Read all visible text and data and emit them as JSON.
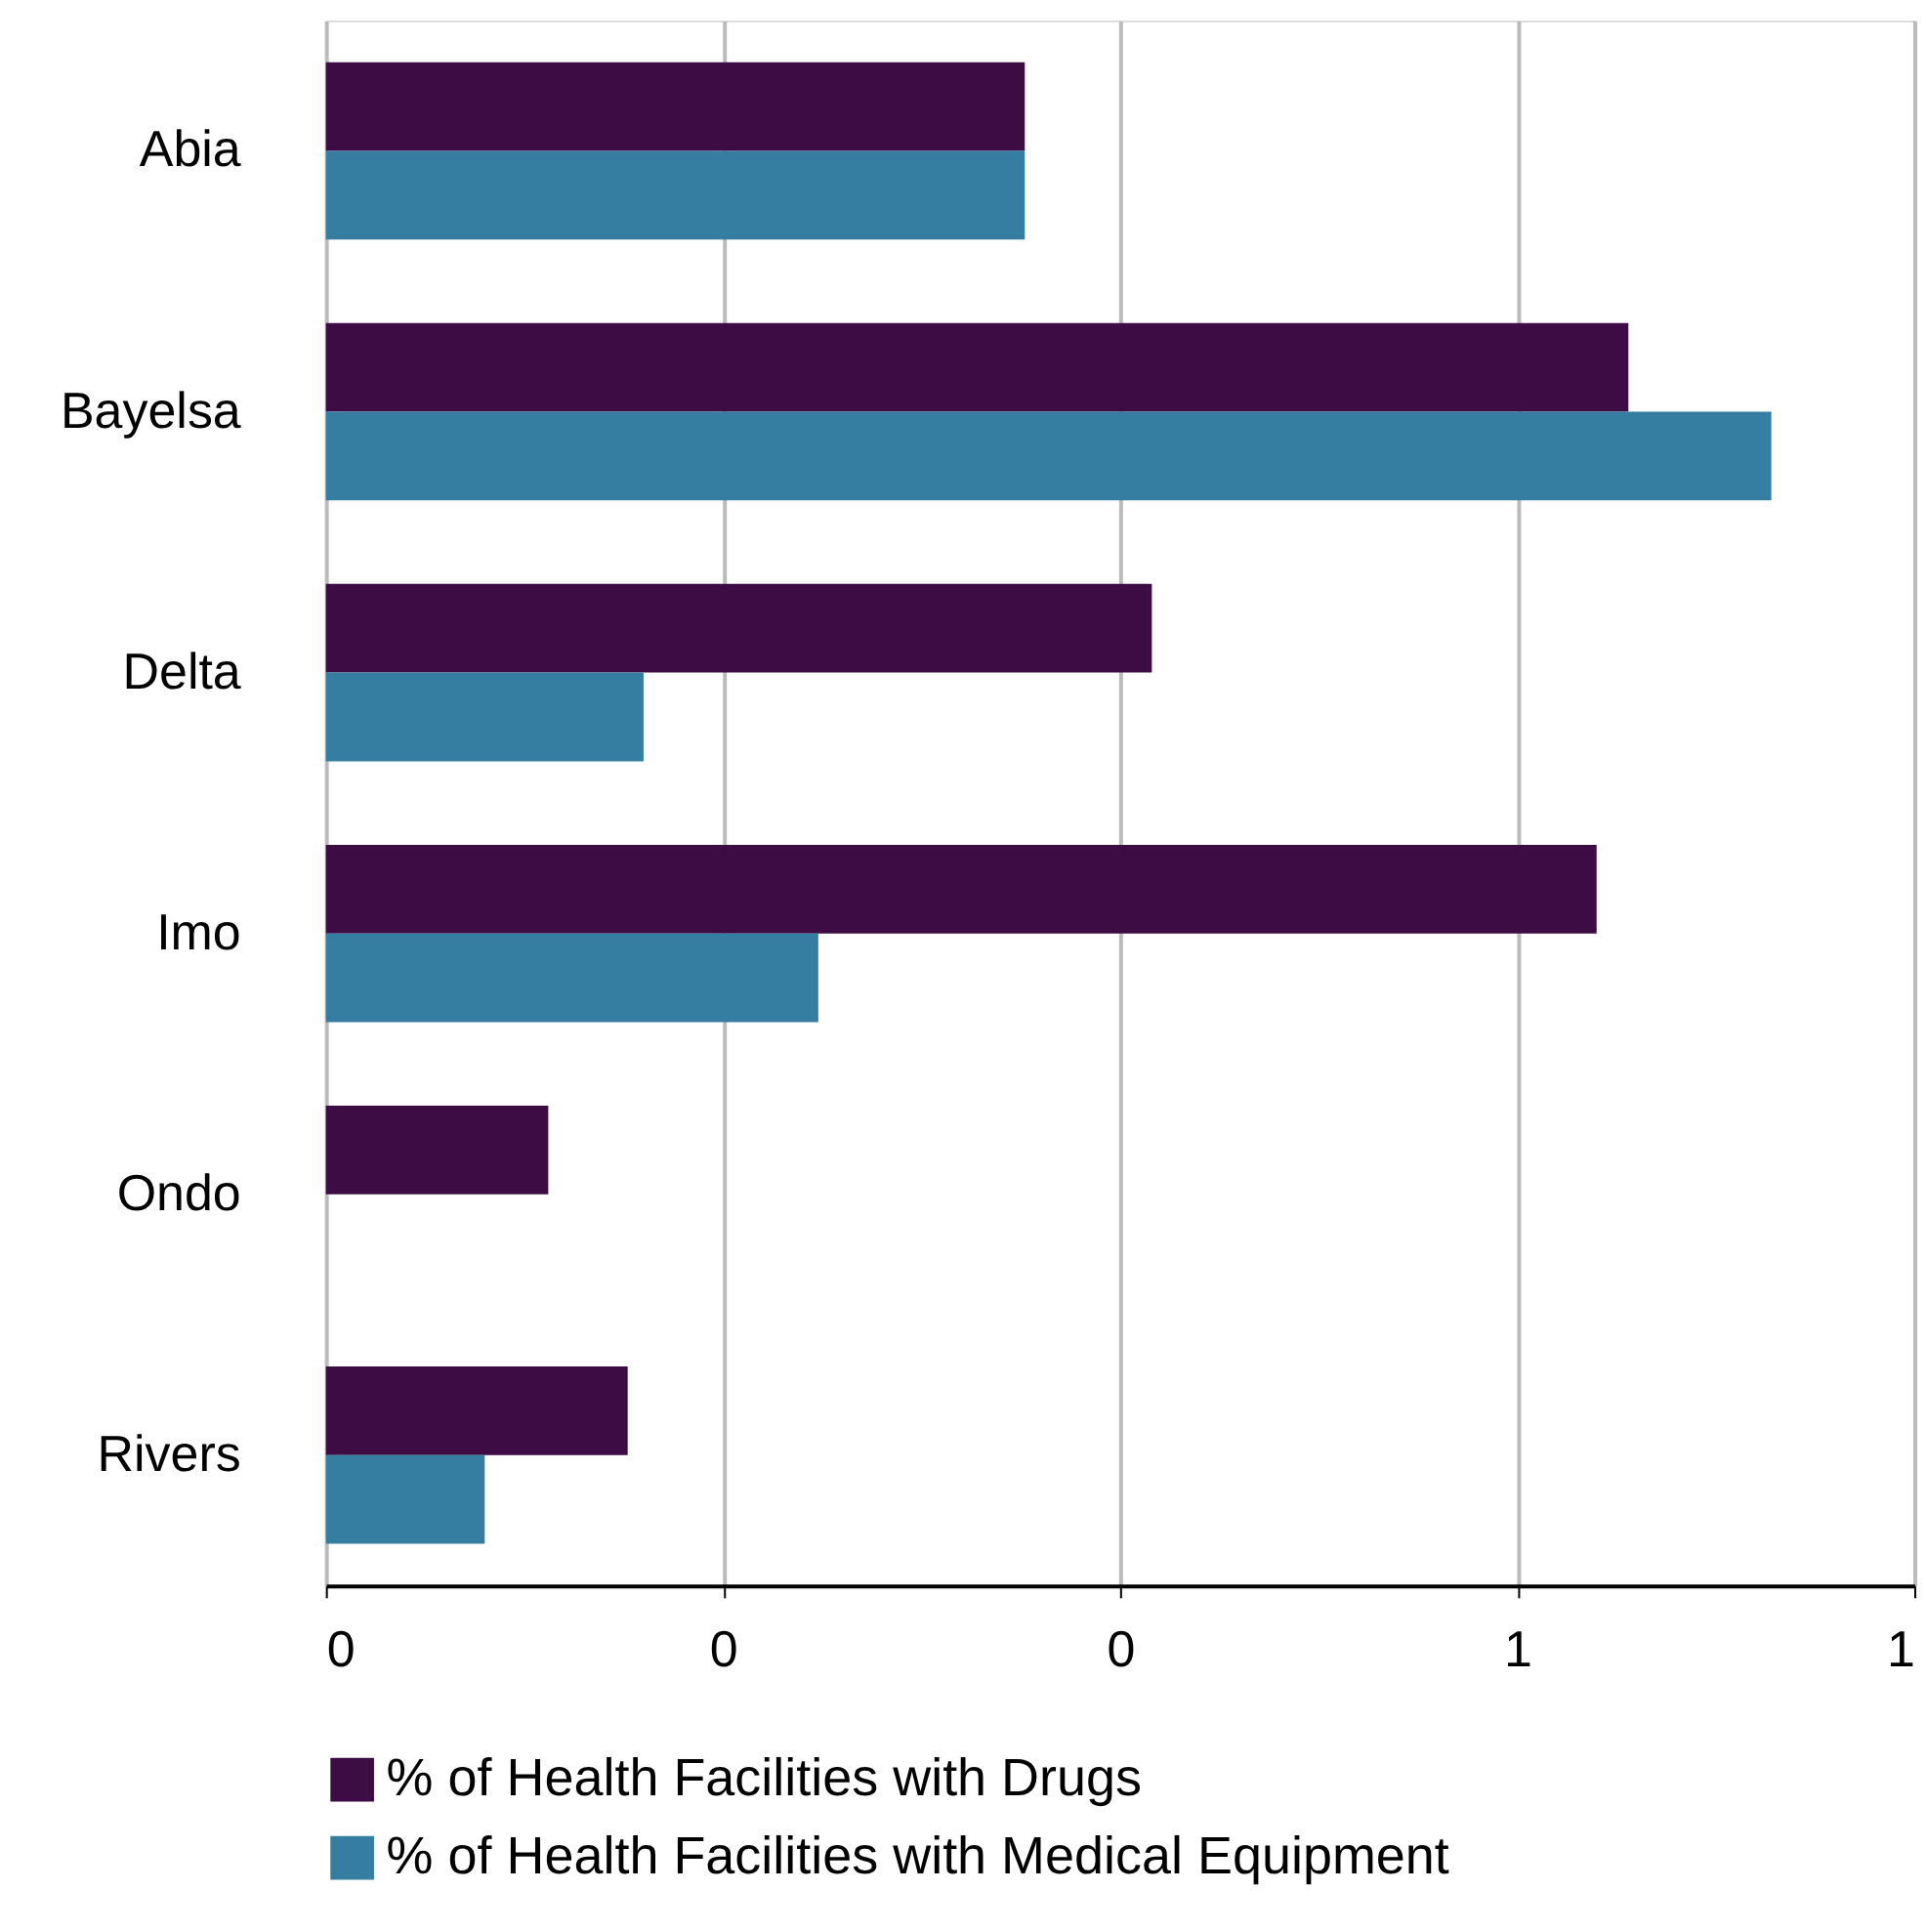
{
  "chart_data": {
    "type": "bar",
    "orientation": "horizontal",
    "categories": [
      "Abia",
      "Bayelsa",
      "Delta",
      "Imo",
      "Ondo",
      "Rivers"
    ],
    "series": [
      {
        "name": "% of Health Facilities with Drugs",
        "color": "#3d0c45",
        "values": [
          0.44,
          0.82,
          0.52,
          0.8,
          0.14,
          0.19
        ]
      },
      {
        "name": "% of Health Facilities with Medical Equipment",
        "color": "#357ea2",
        "values": [
          0.44,
          0.91,
          0.2,
          0.31,
          0,
          0.1
        ]
      }
    ],
    "xlim": [
      0,
      1
    ],
    "xticks": [
      0,
      {
        "value": 0.25,
        "label": "0"
      },
      {
        "value": 0.5,
        "label": "0"
      },
      {
        "value": 0.75,
        "label": "1"
      },
      1
    ],
    "grid": "x",
    "legend": "bottom left"
  }
}
